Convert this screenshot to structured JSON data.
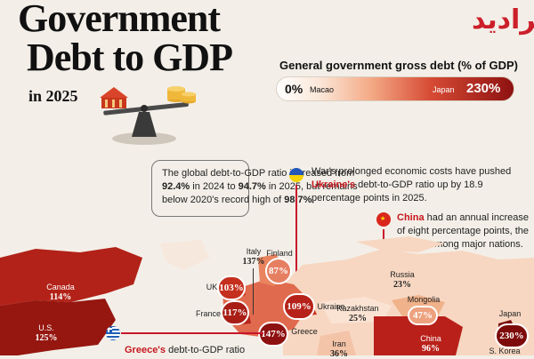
{
  "title": {
    "line1": "Government",
    "line2": "Debt to GDP",
    "subtitle": "in 2025"
  },
  "legend": {
    "title": "General government gross debt (% of GDP)",
    "min_value": "0%",
    "min_label": "Macao",
    "max_label": "Japan",
    "max_value": "230%"
  },
  "notes": {
    "global": {
      "t1": "The global debt-to-GDP ratio increased from ",
      "b1": "92.4%",
      "t2": " in 2024 to ",
      "b2": "94.7%",
      "t3": " in 2025, but remains below 2020's record high of ",
      "b3": "98.7%",
      "t4": "."
    },
    "ukraine": {
      "t1": "War's prolonged economic costs have pushed ",
      "country": "Ukraine's",
      "t2": " debt-to-GDP ratio up by 18.9 percentage points in 2025."
    },
    "china": {
      "country": "China",
      "t1": " had an annual increase of eight percentage points, the largest among major nations."
    },
    "greece": {
      "country": "Greece's",
      "t1": " debt-to-GDP ratio"
    }
  },
  "countries": {
    "canada": {
      "name": "Canada",
      "value": "114%"
    },
    "us": {
      "name": "U.S.",
      "value": "125%"
    },
    "italy": {
      "name": "Italy",
      "value": "137%"
    },
    "finland": {
      "name": "Finland",
      "value": "87%"
    },
    "uk": {
      "name": "UK",
      "value": "103%"
    },
    "france": {
      "name": "France",
      "value": "117%"
    },
    "greece": {
      "name": "Greece",
      "value": "147%"
    },
    "ukraine": {
      "name": "Ukraine",
      "value": "109%"
    },
    "russia": {
      "name": "Russia",
      "value": "23%"
    },
    "mongolia": {
      "name": "Mongolia",
      "value": "47%"
    },
    "kazakhstan": {
      "name": "Kazakhstan",
      "value": "25%"
    },
    "iran": {
      "name": "Iran",
      "value": "36%"
    },
    "china": {
      "name": "China",
      "value": "96%"
    },
    "japan": {
      "name": "Japan",
      "value": "230%"
    },
    "skorea": {
      "name": "S. Korea",
      "value": ""
    }
  },
  "watermark": "فرادید",
  "colors": {
    "accent": "#c9152a",
    "dark_red": "#8e1111",
    "background": "#f3efe8"
  }
}
